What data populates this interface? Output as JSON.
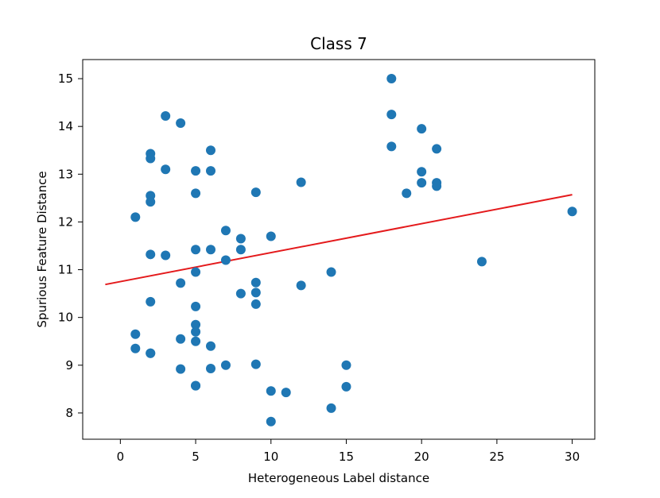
{
  "chart_data": {
    "type": "scatter",
    "title": "Class 7",
    "xlabel": "Heterogeneous Label distance",
    "ylabel": "Spurious Feature Distance",
    "xlim": [
      -2.5,
      31.5
    ],
    "ylim": [
      7.45,
      15.4
    ],
    "xticks": [
      0,
      5,
      10,
      15,
      20,
      25,
      30
    ],
    "yticks": [
      8,
      9,
      10,
      11,
      12,
      13,
      14,
      15
    ],
    "grid": false,
    "colors": {
      "points": "#1f77b4",
      "fit_line": "#e41a1c"
    },
    "series": [
      {
        "kind": "points",
        "x": [
          1,
          1,
          1,
          2,
          2,
          2,
          2,
          2,
          2,
          2,
          2,
          3,
          3,
          3,
          4,
          4,
          4,
          4,
          5,
          5,
          5,
          5,
          5,
          5,
          5,
          5,
          5,
          5,
          6,
          6,
          6,
          6,
          6,
          7,
          7,
          7,
          8,
          8,
          8,
          9,
          9,
          9,
          9,
          9,
          10,
          10,
          10,
          11,
          12,
          12,
          14,
          14,
          15,
          15,
          18,
          18,
          18,
          19,
          20,
          20,
          20,
          21,
          21,
          21,
          24,
          30
        ],
        "y": [
          12.1,
          9.65,
          9.35,
          13.43,
          13.33,
          12.55,
          12.42,
          11.32,
          10.33,
          9.25,
          9.25,
          14.22,
          13.1,
          11.3,
          14.07,
          10.72,
          9.55,
          8.92,
          13.07,
          12.6,
          11.42,
          10.95,
          10.23,
          9.85,
          9.7,
          9.5,
          8.57,
          8.57,
          13.5,
          13.07,
          11.42,
          9.4,
          8.93,
          11.82,
          11.2,
          9.0,
          11.65,
          11.42,
          10.5,
          12.62,
          10.73,
          10.52,
          10.28,
          9.02,
          11.7,
          8.46,
          7.82,
          8.43,
          12.83,
          10.67,
          10.95,
          8.1,
          9.0,
          8.55,
          15.0,
          14.25,
          13.58,
          12.6,
          13.95,
          13.05,
          12.82,
          13.53,
          12.82,
          12.75,
          11.17,
          12.22
        ]
      },
      {
        "kind": "fit_line",
        "x": [
          -1,
          30
        ],
        "y": [
          10.69,
          12.57
        ]
      }
    ]
  }
}
